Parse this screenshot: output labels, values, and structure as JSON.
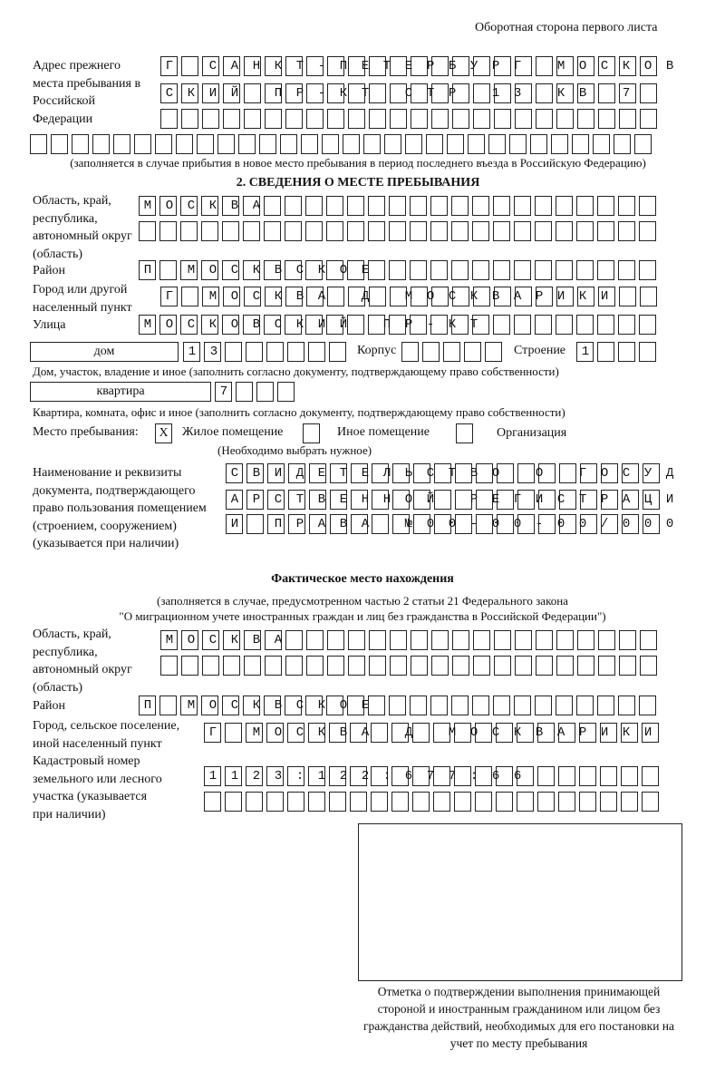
{
  "header": {
    "side_note": "Оборотная сторона первого листа"
  },
  "previous_address": {
    "label": "Адрес прежнего места пребывания в Российской Федерации",
    "rows": [
      "Г САНКТ-ПЕТЕРБУРГ МОСКОВ",
      "СКИЙ ПР-КТ СТР 13 КВ 7",
      "",
      ""
    ],
    "note": "(заполняется в случае прибытия в новое место пребывания в период последнего въезда в Российскую Федерацию)"
  },
  "section2": {
    "title": "2. СВЕДЕНИЯ О МЕСТЕ ПРЕБЫВАНИЯ",
    "region_label": "Область, край, республика, автономный округ (область)",
    "region_rows": [
      "МОСКВА",
      ""
    ],
    "district_label": "Район",
    "district": "П МОСКВСКОЕ",
    "city_label": "Город или другой населенный пункт",
    "city": "Г МОСКВА Д МОСКВАРИКИ",
    "street_label": "Улица",
    "street": "МОСКОВСКИЙ ПР-КТ",
    "house_type": "дом",
    "house_number": "13",
    "korpus_label": "Корпус",
    "korpus": "",
    "building_label": "Строение",
    "building": "1",
    "house_note": "Дом, участок, владение и иное (заполнить согласно документу, подтверждающему право собственности)",
    "apt_type": "квартира",
    "apt_number": "7",
    "apt_note": "Квартира, комната, офис и иное (заполнить согласно документу, подтверждающему право собственности)",
    "stay_place_label": "Место пребывания:",
    "options": [
      {
        "label": "Жилое помещение",
        "mark": "X"
      },
      {
        "label": "Иное помещение",
        "mark": ""
      },
      {
        "label": "Организация",
        "mark": ""
      }
    ],
    "choose_note": "(Необходимо выбрать нужное)",
    "doc_label": "Наименование и реквизиты документа, подтверждающего право пользования помещением (строением, сооружением) (указывается при наличии)",
    "doc_rows": [
      "СВИДЕТЕЛЬСТВО О ГОСУД",
      "АРСТВЕННОЙ РЕГИСТРАЦИ",
      "И ПРАВА №00-00-00/000"
    ]
  },
  "actual": {
    "title": "Фактическое место нахождения",
    "note1": "(заполняется в случае, предусмотренном частью 2 статьи 21 Федерального закона",
    "note2": "\"О миграционном учете иностранных граждан и лиц без гражданства в Российской Федерации\")",
    "region_label": "Область, край, республика, автономный округ (область)",
    "region_rows": [
      "МОСКВА",
      ""
    ],
    "district_label": "Район",
    "district": "П МОСКВСКОЕ",
    "city_label": "Город, сельское поселение, иной населенный пункт",
    "city": "Г МОСКВА Д МОСКВАРИКИ",
    "cadastral_label": "Кадастровый номер земельного или лесного участка (указывается при наличии)",
    "cadastral_rows": [
      "1123:122:677:66",
      ""
    ]
  },
  "stamp": {
    "caption": "Отметка о подтверждении выполнения принимающей стороной и иностранным гражданином или лицом без гражданства действий, необходимых для его постановки на учет по месту пребывания"
  }
}
